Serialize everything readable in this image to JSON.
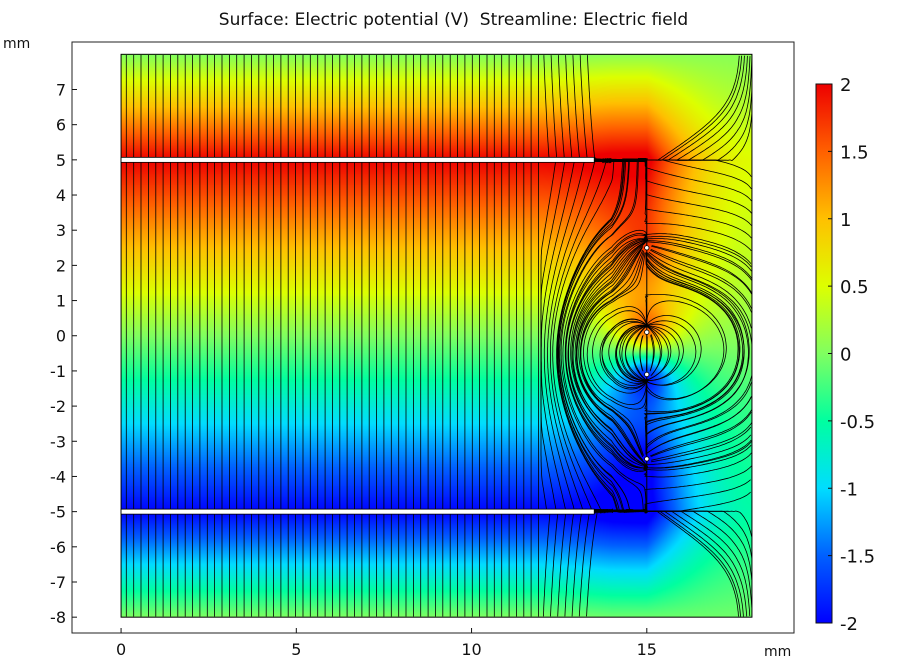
{
  "chart_data": {
    "type": "heatmap",
    "title": "Surface: Electric potential (V)  Streamline: Electric field",
    "x_unit": "mm",
    "y_unit": "mm",
    "xlim": [
      -1.4,
      19.2
    ],
    "ylim": [
      -8.45,
      8.35
    ],
    "x_ticks": [
      0,
      5,
      10,
      15
    ],
    "x_tick_labels": [
      "0",
      "5",
      "10",
      "15"
    ],
    "y_ticks": [
      7,
      6,
      5,
      4,
      3,
      2,
      1,
      0,
      -1,
      -2,
      -3,
      -4,
      -5,
      -6,
      -7,
      -8
    ],
    "y_tick_labels": [
      "7",
      "6",
      "5",
      "4",
      "3",
      "2",
      "1",
      "0",
      "-1",
      "-2",
      "-3",
      "-4",
      "-5",
      "-6",
      "-7",
      "-8"
    ],
    "domain": {
      "x": [
        0,
        18
      ],
      "y": [
        -8,
        8
      ]
    },
    "electrode_slits": [
      {
        "y": 5,
        "x_end": 13.5
      },
      {
        "y": -5,
        "x_end": 13.5
      }
    ],
    "inner_boundary_x": 15,
    "inner_box_top_y": 5,
    "inner_box_bottom_y": -5,
    "point_charges": [
      {
        "x": 15,
        "y": 2.5
      },
      {
        "x": 15,
        "y": 0.1
      },
      {
        "x": 15,
        "y": -1.1
      },
      {
        "x": 15,
        "y": -3.5
      }
    ],
    "colorbar": {
      "colormap": "rainbow",
      "range": [
        -2,
        2
      ],
      "ticks": [
        2,
        1.5,
        1,
        0.5,
        0,
        -0.5,
        -1,
        -1.5,
        -2
      ],
      "tick_labels": [
        "2",
        "1.5",
        "1",
        "0.5",
        "0",
        "-0.5",
        "-1",
        "-1.5",
        "-2"
      ]
    },
    "grid": false
  }
}
